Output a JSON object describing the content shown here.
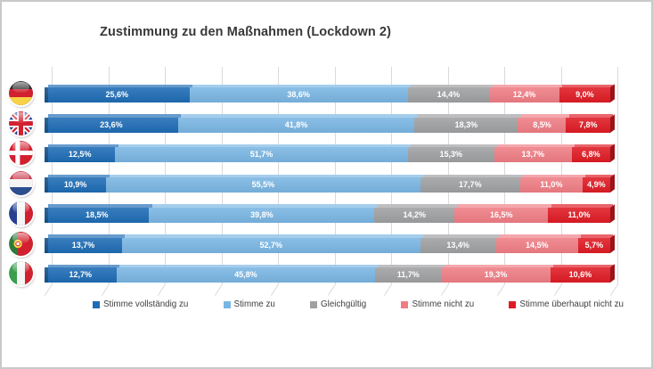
{
  "title": "Zustimmung zu den Maßnahmen (Lockdown 2)",
  "chart_data": {
    "type": "bar",
    "orientation": "horizontal-stacked",
    "unit": "%",
    "xlim": [
      0,
      100
    ],
    "gridline_step": 10,
    "categories": [
      {
        "name": "Deutschland",
        "flag": "de"
      },
      {
        "name": "Großbritannien",
        "flag": "gb"
      },
      {
        "name": "Dänemark",
        "flag": "dk"
      },
      {
        "name": "Niederlande",
        "flag": "nl"
      },
      {
        "name": "Frankreich",
        "flag": "fr"
      },
      {
        "name": "Portugal",
        "flag": "pt"
      },
      {
        "name": "Italien",
        "flag": "it"
      }
    ],
    "series": [
      {
        "name": "Stimme vollständig zu",
        "color": "#1e6cb5",
        "values": [
          25.6,
          23.6,
          12.5,
          10.9,
          18.5,
          13.7,
          12.7
        ]
      },
      {
        "name": "Stimme zu",
        "color": "#7ab6e3",
        "values": [
          38.6,
          41.8,
          51.7,
          55.5,
          39.8,
          52.7,
          45.8
        ]
      },
      {
        "name": "Gleichgültig",
        "color": "#9fa0a2",
        "values": [
          14.4,
          18.3,
          15.3,
          17.7,
          14.2,
          13.4,
          11.7
        ]
      },
      {
        "name": "Stimme nicht zu",
        "color": "#ef7d85",
        "values": [
          12.4,
          8.5,
          13.7,
          11.0,
          16.5,
          14.5,
          19.3
        ]
      },
      {
        "name": "Stimme überhaupt nicht zu",
        "color": "#df1b24",
        "values": [
          9.0,
          7.8,
          6.8,
          4.9,
          11.0,
          5.7,
          10.6
        ]
      }
    ],
    "value_labels": [
      [
        "25,6%",
        "38,6%",
        "14,4%",
        "12,4%",
        "9,0%"
      ],
      [
        "23,6%",
        "41,8%",
        "18,3%",
        "8,5%",
        "7,8%"
      ],
      [
        "12,5%",
        "51,7%",
        "15,3%",
        "13,7%",
        "6,8%"
      ],
      [
        "10,9%",
        "55,5%",
        "17,7%",
        "11,0%",
        "4,9%"
      ],
      [
        "18,5%",
        "39,8%",
        "14,2%",
        "16,5%",
        "11,0%"
      ],
      [
        "13,7%",
        "52,7%",
        "13,4%",
        "14,5%",
        "5,7%"
      ],
      [
        "12,7%",
        "45,8%",
        "11,7%",
        "19,3%",
        "10,6%"
      ]
    ],
    "legend_position": "bottom"
  }
}
